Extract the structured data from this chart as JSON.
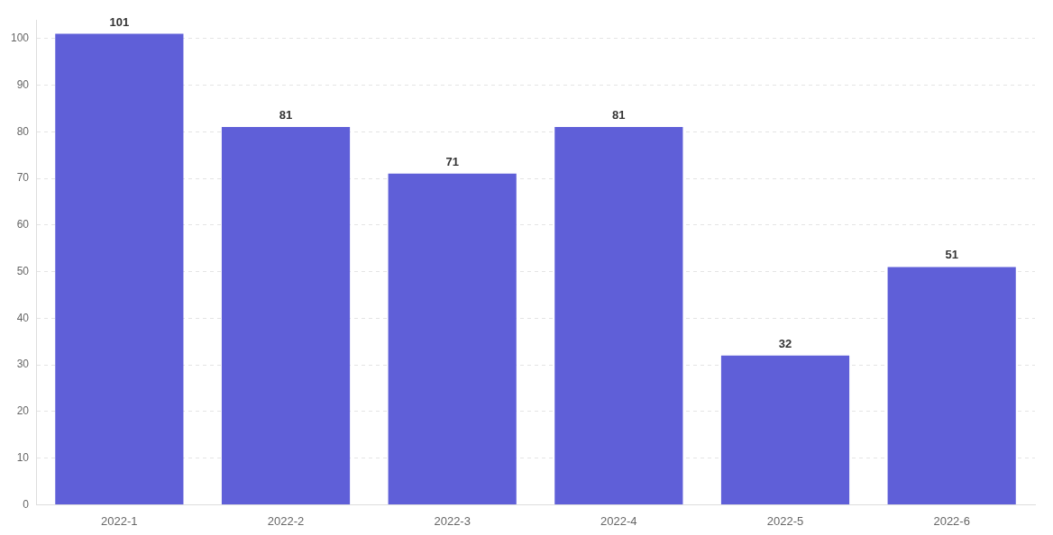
{
  "chart_data": {
    "type": "bar",
    "categories": [
      "2022-1",
      "2022-2",
      "2022-3",
      "2022-4",
      "2022-5",
      "2022-6"
    ],
    "values": [
      101,
      81,
      71,
      81,
      32,
      51
    ],
    "color": "#5f5fd8",
    "ylim": [
      0,
      104
    ],
    "yticks": [
      0,
      10,
      20,
      30,
      40,
      50,
      60,
      70,
      80,
      90,
      100
    ],
    "grid": "y",
    "data_labels": true,
    "legend": false
  }
}
